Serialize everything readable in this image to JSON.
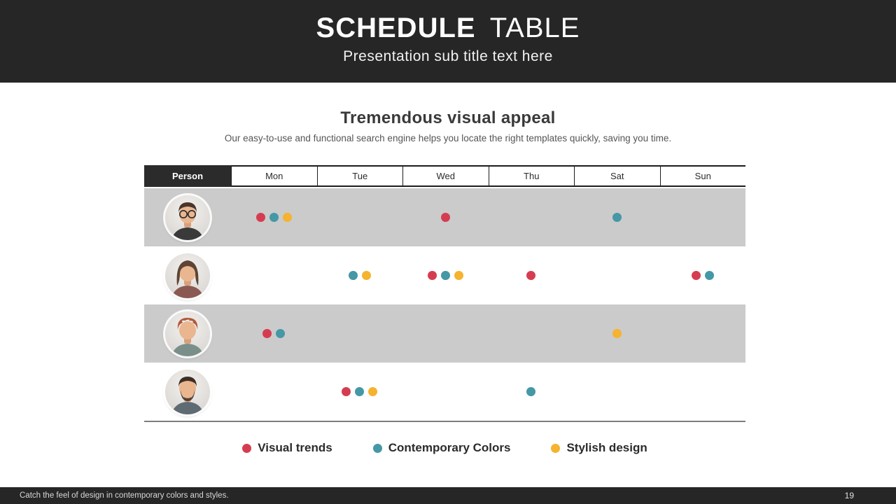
{
  "slide": {
    "title_bold": "SCHEDULE",
    "title_light": "TABLE",
    "subtitle": "Presentation sub title text here",
    "footer_text": "Catch the feel of design in contemporary colors and styles.",
    "page_number": "19"
  },
  "section": {
    "heading": "Tremendous visual appeal",
    "description": "Our easy-to-use and functional search engine helps you locate the right templates quickly, saving you time."
  },
  "colors": {
    "red": "#d63c50",
    "teal": "#4598a5",
    "yellow": "#f5b32e",
    "dark_band": "#262626",
    "row_stripe": "#cbcbcb"
  },
  "table": {
    "person_header": "Person",
    "day_headers": [
      "Mon",
      "Tue",
      "Wed",
      "Thu",
      "Sat",
      "Sun"
    ],
    "rows": [
      {
        "avatar": "man-glasses",
        "cells": [
          [
            "red",
            "teal",
            "yellow"
          ],
          [],
          [
            "red"
          ],
          [],
          [
            "teal"
          ],
          []
        ]
      },
      {
        "avatar": "woman-long-hair",
        "cells": [
          [],
          [
            "teal",
            "yellow"
          ],
          [
            "red",
            "teal",
            "yellow"
          ],
          [
            "red"
          ],
          [],
          [
            "red",
            "teal"
          ]
        ]
      },
      {
        "avatar": "woman-short-hair",
        "cells": [
          [
            "red",
            "teal"
          ],
          [],
          [],
          [],
          [
            "yellow"
          ],
          []
        ]
      },
      {
        "avatar": "man-beard",
        "cells": [
          [],
          [
            "red",
            "teal",
            "yellow"
          ],
          [],
          [
            "teal"
          ],
          [],
          []
        ]
      }
    ]
  },
  "legend": [
    {
      "label": "Visual trends",
      "color": "red"
    },
    {
      "label": "Contemporary Colors",
      "color": "teal"
    },
    {
      "label": "Stylish design",
      "color": "yellow"
    }
  ]
}
